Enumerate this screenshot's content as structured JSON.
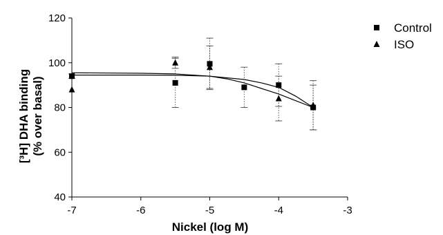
{
  "chart_data": {
    "type": "scatter",
    "xlabel": "Nickel (log M)",
    "ylabel_line1": "[³H] DHA binding",
    "ylabel_line2": "(% over basal)",
    "xlim": [
      -7,
      -3
    ],
    "ylim": [
      40,
      120
    ],
    "xticks": [
      -7,
      -6,
      -5,
      -4,
      -3
    ],
    "yticks": [
      40,
      60,
      80,
      100,
      120
    ],
    "legend_position": "top-right",
    "series": [
      {
        "name": "Control",
        "marker": "square",
        "points": [
          {
            "x": -7,
            "y": 94,
            "err": 1
          },
          {
            "x": -5.5,
            "y": 91,
            "err": 11
          },
          {
            "x": -5,
            "y": 99.5,
            "err": 11.5
          },
          {
            "x": -4.5,
            "y": 89,
            "err": 9
          },
          {
            "x": -4,
            "y": 90,
            "err": 9.5
          },
          {
            "x": -3.5,
            "y": 80,
            "err": 10
          }
        ],
        "fit": [
          [
            -7,
            94.5
          ],
          [
            -6,
            94.5
          ],
          [
            -5.5,
            94.4
          ],
          [
            -5,
            94
          ],
          [
            -4.5,
            92.5
          ],
          [
            -4.25,
            91
          ],
          [
            -4,
            89
          ],
          [
            -3.75,
            85
          ],
          [
            -3.5,
            80
          ]
        ]
      },
      {
        "name": "ISO",
        "marker": "triangle",
        "points": [
          {
            "x": -7,
            "y": 88,
            "err": 0
          },
          {
            "x": -5.5,
            "y": 100,
            "err": 2.5
          },
          {
            "x": -5,
            "y": 98,
            "err": 9.5
          },
          {
            "x": -4,
            "y": 84,
            "err": 10
          },
          {
            "x": -3.5,
            "y": 81,
            "err": 11
          }
        ],
        "fit": [
          [
            -7,
            95.5
          ],
          [
            -6,
            95.3
          ],
          [
            -5.5,
            95
          ],
          [
            -5,
            94
          ],
          [
            -4.75,
            92.8
          ],
          [
            -4.5,
            91
          ],
          [
            -4.25,
            88.5
          ],
          [
            -4,
            86
          ],
          [
            -3.75,
            83
          ],
          [
            -3.5,
            80
          ]
        ]
      }
    ]
  }
}
